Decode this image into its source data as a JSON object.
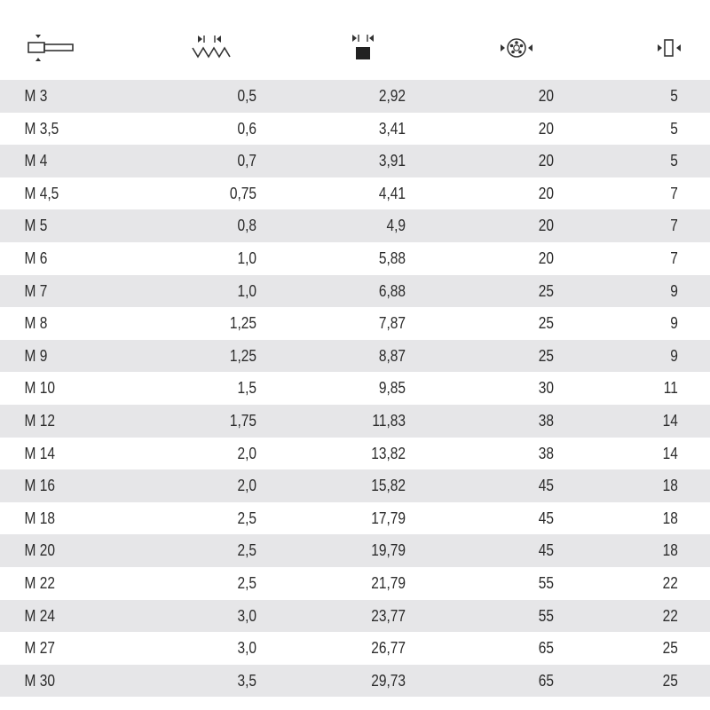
{
  "header_icons": [
    "thread-size-icon",
    "thread-pitch-icon",
    "hex-across-flats-icon",
    "die-diameter-icon",
    "die-thickness-icon"
  ],
  "rows": [
    [
      "M 3",
      "0,5",
      "2,92",
      "20",
      "5"
    ],
    [
      "M 3,5",
      "0,6",
      "3,41",
      "20",
      "5"
    ],
    [
      "M 4",
      "0,7",
      "3,91",
      "20",
      "5"
    ],
    [
      "M 4,5",
      "0,75",
      "4,41",
      "20",
      "7"
    ],
    [
      "M 5",
      "0,8",
      "4,9",
      "20",
      "7"
    ],
    [
      "M 6",
      "1,0",
      "5,88",
      "20",
      "7"
    ],
    [
      "M 7",
      "1,0",
      "6,88",
      "25",
      "9"
    ],
    [
      "M 8",
      "1,25",
      "7,87",
      "25",
      "9"
    ],
    [
      "M 9",
      "1,25",
      "8,87",
      "25",
      "9"
    ],
    [
      "M 10",
      "1,5",
      "9,85",
      "30",
      "11"
    ],
    [
      "M 12",
      "1,75",
      "11,83",
      "38",
      "14"
    ],
    [
      "M 14",
      "2,0",
      "13,82",
      "38",
      "14"
    ],
    [
      "M 16",
      "2,0",
      "15,82",
      "45",
      "18"
    ],
    [
      "M 18",
      "2,5",
      "17,79",
      "45",
      "18"
    ],
    [
      "M 20",
      "2,5",
      "19,79",
      "45",
      "18"
    ],
    [
      "M 22",
      "2,5",
      "21,79",
      "55",
      "22"
    ],
    [
      "M 24",
      "3,0",
      "23,77",
      "55",
      "22"
    ],
    [
      "M 27",
      "3,0",
      "26,77",
      "65",
      "25"
    ],
    [
      "M 30",
      "3,5",
      "29,73",
      "65",
      "25"
    ]
  ],
  "colors": {
    "row_shade": "#e6e6e8",
    "text": "#2b2b2b"
  }
}
